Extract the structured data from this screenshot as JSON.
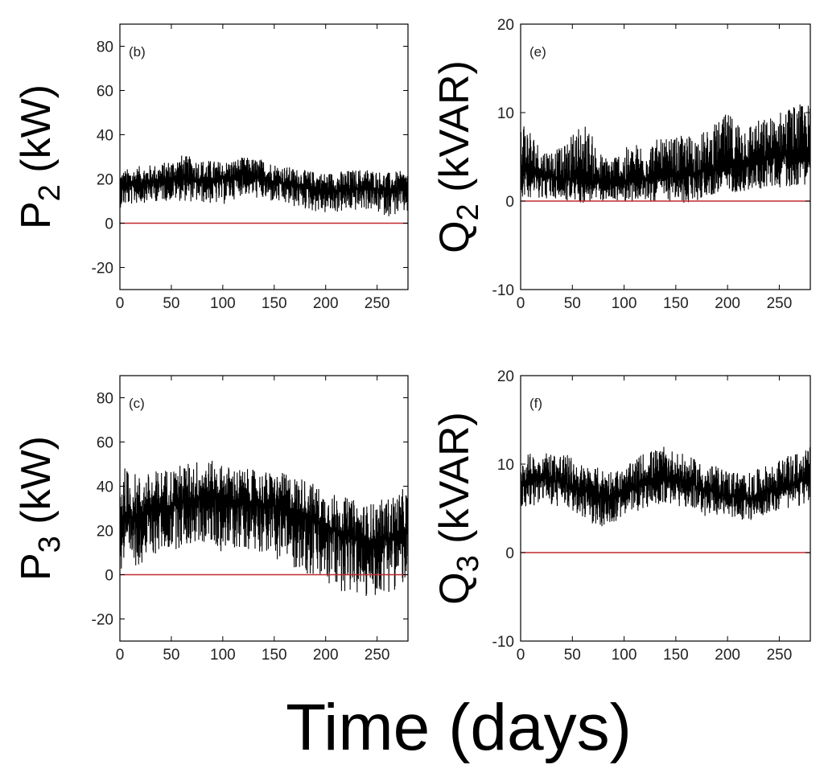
{
  "figure": {
    "xlabel": "Time (days)"
  },
  "chart_data": [
    {
      "type": "line",
      "panel": "(b)",
      "ylabel": {
        "var": "P",
        "sub": "2",
        "unit": "(kW)"
      },
      "xlim": [
        0,
        280
      ],
      "ylim": [
        -30,
        90
      ],
      "xticks": [
        0,
        50,
        100,
        150,
        200,
        250
      ],
      "yticks": [
        -20,
        0,
        20,
        40,
        60,
        80
      ],
      "reference_line": 0,
      "line_color": "#000000",
      "reference_color": "#c0282d",
      "series": [
        {
          "x": [
            0,
            20,
            40,
            60,
            80,
            100,
            120,
            140,
            160,
            180,
            200,
            220,
            240,
            260,
            280
          ],
          "center": [
            16,
            18,
            19,
            21,
            19,
            20,
            22,
            20,
            18,
            17,
            15,
            15,
            16,
            15,
            16
          ],
          "low": [
            7,
            9,
            10,
            10,
            9,
            8,
            13,
            10,
            8,
            6,
            4,
            5,
            6,
            3,
            4
          ],
          "high": [
            24,
            26,
            27,
            31,
            29,
            28,
            30,
            29,
            26,
            24,
            23,
            24,
            25,
            23,
            24
          ]
        }
      ]
    },
    {
      "type": "line",
      "panel": "(e)",
      "ylabel": {
        "var": "Q",
        "sub": "2",
        "unit": "(kVAR)"
      },
      "xlim": [
        0,
        280
      ],
      "ylim": [
        -10,
        20
      ],
      "xticks": [
        0,
        50,
        100,
        150,
        200,
        250
      ],
      "yticks": [
        -10,
        0,
        10,
        20
      ],
      "reference_line": 0,
      "line_color": "#000000",
      "reference_color": "#c0282d",
      "series": [
        {
          "x": [
            0,
            20,
            40,
            60,
            80,
            100,
            120,
            140,
            160,
            180,
            200,
            220,
            240,
            260,
            280
          ],
          "center": [
            3.5,
            3,
            2.5,
            2.5,
            2,
            2,
            2.5,
            3,
            3,
            3.5,
            4,
            4.5,
            5,
            5.5,
            6
          ],
          "low": [
            0.5,
            0.3,
            0,
            -0.3,
            0,
            0,
            -0.2,
            0,
            -0.5,
            0.5,
            1,
            1,
            1.5,
            1.5,
            2
          ],
          "high": [
            10.5,
            6,
            6,
            9.5,
            5,
            6,
            7,
            7,
            7.5,
            8,
            10,
            9,
            9.5,
            11,
            11
          ]
        }
      ]
    },
    {
      "type": "line",
      "panel": "(c)",
      "ylabel": {
        "var": "P",
        "sub": "3",
        "unit": "(kW)"
      },
      "xlim": [
        0,
        280
      ],
      "ylim": [
        -30,
        90
      ],
      "xticks": [
        0,
        50,
        100,
        150,
        200,
        250
      ],
      "yticks": [
        -20,
        0,
        20,
        40,
        60,
        80
      ],
      "reference_line": 0,
      "line_color": "#000000",
      "reference_color": "#c0282d",
      "series": [
        {
          "x": [
            0,
            20,
            40,
            60,
            80,
            100,
            120,
            140,
            160,
            180,
            200,
            220,
            240,
            260,
            280
          ],
          "center": [
            25,
            27,
            30,
            33,
            35,
            34,
            33,
            32,
            30,
            27,
            22,
            18,
            15,
            16,
            20
          ],
          "low": [
            -2,
            5,
            10,
            12,
            14,
            10,
            12,
            10,
            5,
            0,
            -6,
            -8,
            -12,
            -8,
            -5
          ],
          "high": [
            50,
            45,
            48,
            50,
            53,
            50,
            48,
            47,
            46,
            44,
            38,
            35,
            32,
            35,
            40
          ]
        }
      ]
    },
    {
      "type": "line",
      "panel": "(f)",
      "ylabel": {
        "var": "Q",
        "sub": "3",
        "unit": "(kVAR)"
      },
      "xlim": [
        0,
        280
      ],
      "ylim": [
        -10,
        20
      ],
      "xticks": [
        0,
        50,
        100,
        150,
        200,
        250
      ],
      "yticks": [
        -10,
        0,
        10,
        20
      ],
      "reference_line": 0,
      "line_color": "#000000",
      "reference_color": "#c0282d",
      "series": [
        {
          "x": [
            0,
            20,
            40,
            60,
            80,
            100,
            120,
            140,
            160,
            180,
            200,
            220,
            240,
            260,
            280
          ],
          "center": [
            8,
            8.5,
            8,
            7,
            6.5,
            6.5,
            8,
            8.5,
            8,
            7,
            6.5,
            6,
            7,
            7.5,
            8.5
          ],
          "low": [
            5,
            5.5,
            5,
            4,
            2.5,
            4,
            5,
            5.5,
            5,
            4,
            4,
            3.5,
            4.5,
            5,
            5.5
          ],
          "high": [
            11,
            11.5,
            11.5,
            10,
            9.5,
            9.5,
            11.5,
            12,
            11,
            10,
            9.5,
            9,
            10,
            11,
            12
          ]
        }
      ]
    }
  ]
}
